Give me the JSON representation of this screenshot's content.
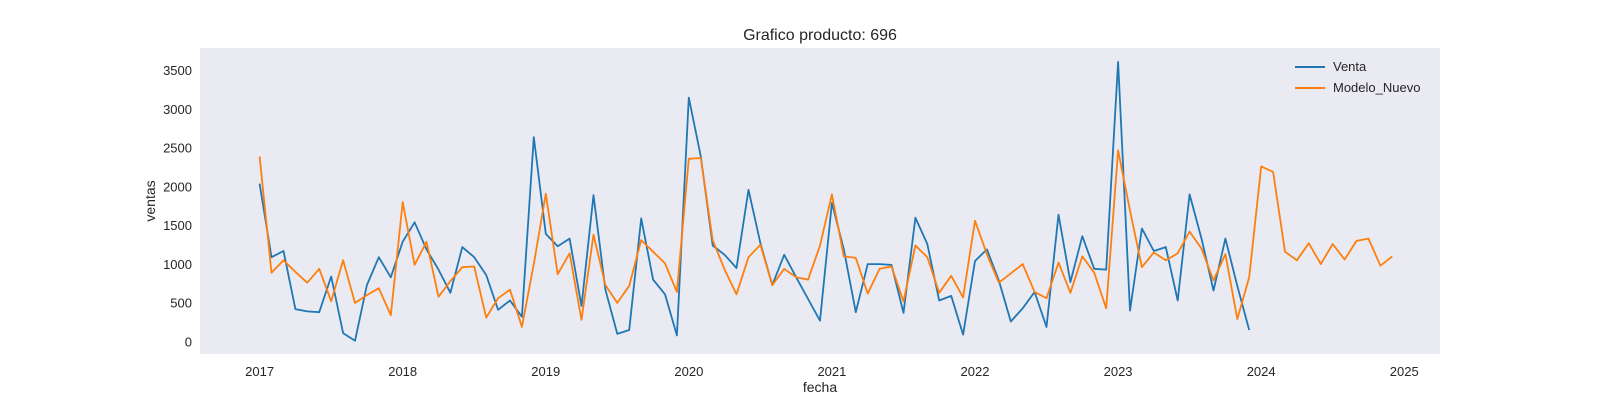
{
  "chart_data": {
    "type": "line",
    "title": "Grafico producto: 696",
    "xlabel": "fecha",
    "ylabel": "ventas",
    "grid": false,
    "legend_position": "top-right",
    "xlim": [
      "2016-08-01",
      "2025-04-01"
    ],
    "ylim": [
      -150,
      3800
    ],
    "x_ticks": [
      "2017",
      "2018",
      "2019",
      "2020",
      "2021",
      "2022",
      "2023",
      "2024",
      "2025"
    ],
    "y_ticks": [
      0,
      500,
      1000,
      1500,
      2000,
      2500,
      3000,
      3500
    ],
    "colors": {
      "plot_background": "#eaeaf2",
      "Venta": "#1f77b4",
      "Modelo_Nuevo": "#ff7f0e"
    },
    "series": [
      {
        "name": "Venta",
        "color": "#1f77b4",
        "x": [
          "2017-01",
          "2017-02",
          "2017-03",
          "2017-04",
          "2017-05",
          "2017-06",
          "2017-07",
          "2017-08",
          "2017-09",
          "2017-10",
          "2017-11",
          "2017-12",
          "2018-01",
          "2018-02",
          "2018-03",
          "2018-04",
          "2018-05",
          "2018-06",
          "2018-07",
          "2018-08",
          "2018-09",
          "2018-10",
          "2018-11",
          "2018-12",
          "2019-01",
          "2019-02",
          "2019-03",
          "2019-04",
          "2019-05",
          "2019-06",
          "2019-07",
          "2019-08",
          "2019-09",
          "2019-10",
          "2019-11",
          "2019-12",
          "2020-01",
          "2020-02",
          "2020-03",
          "2020-04",
          "2020-05",
          "2020-06",
          "2020-07",
          "2020-08",
          "2020-09",
          "2020-10",
          "2020-11",
          "2020-12",
          "2021-01",
          "2021-02",
          "2021-03",
          "2021-04",
          "2021-05",
          "2021-06",
          "2021-07",
          "2021-08",
          "2021-09",
          "2021-10",
          "2021-11",
          "2021-12",
          "2022-01",
          "2022-02",
          "2022-03",
          "2022-04",
          "2022-05",
          "2022-06",
          "2022-07",
          "2022-08",
          "2022-09",
          "2022-10",
          "2022-11",
          "2022-12",
          "2023-01",
          "2023-02",
          "2023-03",
          "2023-04",
          "2023-05",
          "2023-06",
          "2023-07",
          "2023-08",
          "2023-09",
          "2023-10",
          "2023-11",
          "2023-12"
        ],
        "y": [
          2050,
          1100,
          1180,
          430,
          400,
          390,
          850,
          120,
          20,
          740,
          1100,
          840,
          1300,
          1550,
          1200,
          940,
          640,
          1230,
          1100,
          870,
          420,
          540,
          330,
          2650,
          1400,
          1240,
          1340,
          470,
          1900,
          680,
          110,
          160,
          1600,
          810,
          620,
          90,
          3160,
          2400,
          1250,
          1130,
          960,
          1970,
          1280,
          740,
          1130,
          840,
          560,
          280,
          1800,
          1200,
          390,
          1010,
          1010,
          1000,
          380,
          1610,
          1270,
          540,
          600,
          100,
          1050,
          1200,
          800,
          270,
          440,
          650,
          200,
          1650,
          780,
          1370,
          950,
          940,
          3620,
          410,
          1470,
          1180,
          1230,
          540,
          1910,
          1340,
          670,
          1340,
          730,
          160
        ]
      },
      {
        "name": "Modelo_Nuevo",
        "color": "#ff7f0e",
        "x": [
          "2017-01",
          "2017-02",
          "2017-03",
          "2017-04",
          "2017-05",
          "2017-06",
          "2017-07",
          "2017-08",
          "2017-09",
          "2017-10",
          "2017-11",
          "2017-12",
          "2018-01",
          "2018-02",
          "2018-03",
          "2018-04",
          "2018-05",
          "2018-06",
          "2018-07",
          "2018-08",
          "2018-09",
          "2018-10",
          "2018-11",
          "2018-12",
          "2019-01",
          "2019-02",
          "2019-03",
          "2019-04",
          "2019-05",
          "2019-06",
          "2019-07",
          "2019-08",
          "2019-09",
          "2019-10",
          "2019-11",
          "2019-12",
          "2020-01",
          "2020-02",
          "2020-03",
          "2020-04",
          "2020-05",
          "2020-06",
          "2020-07",
          "2020-08",
          "2020-09",
          "2020-10",
          "2020-11",
          "2020-12",
          "2021-01",
          "2021-02",
          "2021-03",
          "2021-04",
          "2021-05",
          "2021-06",
          "2021-07",
          "2021-08",
          "2021-09",
          "2021-10",
          "2021-11",
          "2021-12",
          "2022-01",
          "2022-02",
          "2022-03",
          "2022-04",
          "2022-05",
          "2022-06",
          "2022-07",
          "2022-08",
          "2022-09",
          "2022-10",
          "2022-11",
          "2022-12",
          "2023-01",
          "2023-02",
          "2023-03",
          "2023-04",
          "2023-05",
          "2023-06",
          "2023-07",
          "2023-08",
          "2023-09",
          "2023-10",
          "2023-11",
          "2023-12",
          "2024-01",
          "2024-02",
          "2024-03",
          "2024-04",
          "2024-05",
          "2024-06",
          "2024-07",
          "2024-08",
          "2024-09",
          "2024-10",
          "2024-11",
          "2024-12"
        ],
        "y": [
          2400,
          900,
          1060,
          910,
          770,
          950,
          530,
          1060,
          510,
          610,
          700,
          350,
          1810,
          1000,
          1300,
          590,
          790,
          970,
          980,
          320,
          570,
          680,
          200,
          1010,
          1920,
          880,
          1150,
          290,
          1390,
          740,
          510,
          730,
          1320,
          1170,
          1020,
          650,
          2370,
          2380,
          1320,
          940,
          620,
          1100,
          1260,
          740,
          950,
          840,
          810,
          1250,
          1910,
          1110,
          1090,
          630,
          950,
          980,
          530,
          1250,
          1100,
          640,
          860,
          580,
          1570,
          1140,
          770,
          890,
          1010,
          650,
          570,
          1030,
          640,
          1110,
          900,
          440,
          2480,
          1700,
          970,
          1160,
          1060,
          1150,
          1430,
          1210,
          800,
          1140,
          300,
          840,
          2270,
          2200,
          1170,
          1060,
          1280,
          1010,
          1270,
          1070,
          1310,
          1340,
          990,
          1110
        ]
      }
    ]
  }
}
